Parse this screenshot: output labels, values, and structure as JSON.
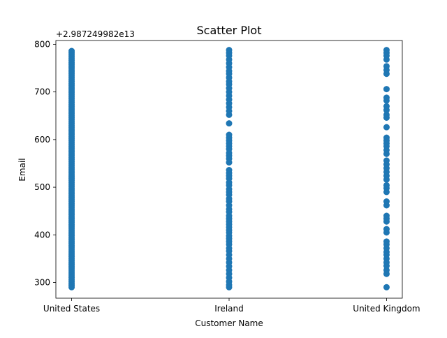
{
  "chart_data": {
    "type": "scatter",
    "title": "Scatter Plot",
    "xlabel": "Customer Name",
    "ylabel": "Email",
    "offset_text": "+2.987249982e13",
    "categories": [
      "United States",
      "Ireland",
      "United Kingdom"
    ],
    "ylim": [
      267,
      808
    ],
    "yticks": [
      300,
      400,
      500,
      600,
      700,
      800
    ],
    "grid": false,
    "marker_color": "#1f77b4",
    "series": [
      {
        "values": [
          [
            290,
            294,
            298,
            302,
            306,
            310,
            314,
            318,
            322,
            326,
            330,
            334,
            338,
            342,
            346,
            350,
            354,
            358,
            362,
            366,
            370,
            374,
            378,
            382,
            386,
            390,
            394,
            398,
            402,
            406,
            410,
            414,
            418,
            422,
            426,
            430,
            434,
            438,
            442,
            446,
            450,
            454,
            458,
            462,
            466,
            470,
            474,
            478,
            482,
            486,
            490,
            494,
            498,
            502,
            506,
            510,
            514,
            518,
            522,
            526,
            530,
            534,
            538,
            542,
            546,
            550,
            554,
            558,
            562,
            566,
            570,
            574,
            578,
            582,
            586,
            590,
            594,
            598,
            602,
            606,
            610,
            614,
            618,
            622,
            626,
            630,
            634,
            638,
            642,
            646,
            650,
            654,
            658,
            662,
            666,
            670,
            674,
            678,
            682,
            686,
            690,
            694,
            698,
            702,
            706,
            710,
            714,
            718,
            722,
            726,
            730,
            734,
            738,
            742,
            746,
            750,
            754,
            758,
            762,
            766,
            770,
            774,
            778,
            782,
            786
          ],
          [
            290,
            295,
            302,
            310,
            318,
            326,
            334,
            342,
            350,
            358,
            366,
            372,
            380,
            386,
            392,
            398,
            405,
            410,
            416,
            422,
            428,
            434,
            440,
            448,
            454,
            462,
            470,
            476,
            484,
            490,
            496,
            504,
            510,
            518,
            524,
            530,
            536,
            552,
            560,
            566,
            572,
            580,
            586,
            592,
            598,
            604,
            610,
            634,
            652,
            660,
            668,
            676,
            684,
            692,
            700,
            708,
            716,
            722,
            730,
            738,
            744,
            752,
            760,
            768,
            776,
            782,
            788
          ],
          [
            290,
            318,
            326,
            335,
            342,
            350,
            358,
            364,
            372,
            380,
            386,
            405,
            412,
            428,
            434,
            440,
            462,
            470,
            490,
            498,
            504,
            516,
            524,
            532,
            540,
            548,
            556,
            570,
            578,
            586,
            592,
            598,
            604,
            626,
            646,
            652,
            662,
            670,
            682,
            688,
            706,
            738,
            746,
            754,
            768,
            776,
            782,
            788
          ]
        ]
      }
    ]
  }
}
